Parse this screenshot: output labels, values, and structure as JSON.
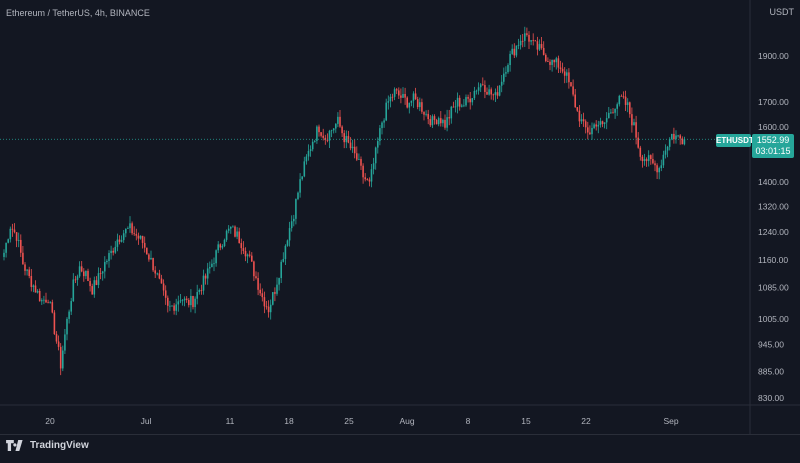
{
  "header": {
    "symbol": "Ethereum / TetherUS, 4h, BINANCE",
    "currency": "USDT"
  },
  "footer": {
    "brand": "TradingView"
  },
  "colors": {
    "background": "#131722",
    "up": "#26a69a",
    "down": "#ef5350",
    "grid": "#1e222d",
    "axis_text": "#b2b5be",
    "last_price_line": "#26a69a"
  },
  "last_price": {
    "symbol": "ETHUSDT",
    "value": "1552.99",
    "countdown": "03:01:15",
    "price": 1552.99
  },
  "chart_data": {
    "type": "candlestick",
    "y_axis": {
      "scale": "log",
      "ticks": [
        830,
        885,
        945,
        1005,
        1085,
        1160,
        1240,
        1320,
        1400,
        1600,
        1700,
        1900
      ],
      "tick_labels": [
        "830.00",
        "885.00",
        "945.00",
        "1005.00",
        "1085.00",
        "1160.00",
        "1240.00",
        "1320.00",
        "1400.00",
        "1600.00",
        "1700.00",
        "1900.00"
      ]
    },
    "x_axis": {
      "tick_labels": [
        "20",
        "Jul",
        "11",
        "18",
        "25",
        "Aug",
        "8",
        "15",
        "22",
        "Sep"
      ]
    },
    "grid": false,
    "path": [
      [
        0,
        1180
      ],
      [
        3,
        1260
      ],
      [
        6,
        1230
      ],
      [
        9,
        1150
      ],
      [
        12,
        1110
      ],
      [
        15,
        1080
      ],
      [
        18,
        1050
      ],
      [
        21,
        1060
      ],
      [
        24,
        980
      ],
      [
        27,
        900
      ],
      [
        30,
        1000
      ],
      [
        33,
        1090
      ],
      [
        36,
        1140
      ],
      [
        39,
        1120
      ],
      [
        42,
        1080
      ],
      [
        45,
        1110
      ],
      [
        48,
        1150
      ],
      [
        51,
        1180
      ],
      [
        54,
        1220
      ],
      [
        57,
        1240
      ],
      [
        60,
        1250
      ],
      [
        63,
        1230
      ],
      [
        66,
        1210
      ],
      [
        69,
        1170
      ],
      [
        72,
        1130
      ],
      [
        75,
        1080
      ],
      [
        78,
        1030
      ],
      [
        81,
        1040
      ],
      [
        84,
        1060
      ],
      [
        87,
        1045
      ],
      [
        90,
        1050
      ],
      [
        93,
        1080
      ],
      [
        96,
        1110
      ],
      [
        99,
        1150
      ],
      [
        102,
        1190
      ],
      [
        105,
        1230
      ],
      [
        108,
        1250
      ],
      [
        111,
        1230
      ],
      [
        114,
        1200
      ],
      [
        117,
        1160
      ],
      [
        120,
        1110
      ],
      [
        123,
        1060
      ],
      [
        126,
        1030
      ],
      [
        129,
        1080
      ],
      [
        132,
        1150
      ],
      [
        135,
        1230
      ],
      [
        138,
        1300
      ],
      [
        141,
        1400
      ],
      [
        144,
        1480
      ],
      [
        147,
        1550
      ],
      [
        150,
        1600
      ],
      [
        153,
        1560
      ],
      [
        156,
        1590
      ],
      [
        159,
        1620
      ],
      [
        162,
        1560
      ],
      [
        165,
        1520
      ],
      [
        168,
        1480
      ],
      [
        171,
        1420
      ],
      [
        174,
        1390
      ],
      [
        177,
        1500
      ],
      [
        180,
        1620
      ],
      [
        183,
        1700
      ],
      [
        186,
        1740
      ],
      [
        189,
        1720
      ],
      [
        192,
        1700
      ],
      [
        195,
        1710
      ],
      [
        198,
        1690
      ],
      [
        201,
        1650
      ],
      [
        204,
        1620
      ],
      [
        207,
        1640
      ],
      [
        210,
        1610
      ],
      [
        213,
        1660
      ],
      [
        216,
        1700
      ],
      [
        219,
        1690
      ],
      [
        222,
        1720
      ],
      [
        225,
        1760
      ],
      [
        228,
        1780
      ],
      [
        231,
        1740
      ],
      [
        234,
        1720
      ],
      [
        237,
        1800
      ],
      [
        240,
        1880
      ],
      [
        243,
        1930
      ],
      [
        246,
        1980
      ],
      [
        249,
        2000
      ],
      [
        252,
        1950
      ],
      [
        255,
        1930
      ],
      [
        258,
        1900
      ],
      [
        261,
        1870
      ],
      [
        264,
        1860
      ],
      [
        267,
        1830
      ],
      [
        270,
        1750
      ],
      [
        273,
        1660
      ],
      [
        276,
        1600
      ],
      [
        279,
        1580
      ],
      [
        282,
        1620
      ],
      [
        285,
        1600
      ],
      [
        288,
        1650
      ],
      [
        291,
        1690
      ],
      [
        294,
        1710
      ],
      [
        297,
        1680
      ],
      [
        300,
        1600
      ],
      [
        303,
        1500
      ],
      [
        306,
        1480
      ],
      [
        309,
        1460
      ],
      [
        312,
        1450
      ],
      [
        315,
        1520
      ],
      [
        318,
        1570
      ],
      [
        321,
        1560
      ],
      [
        324,
        1550
      ]
    ]
  }
}
